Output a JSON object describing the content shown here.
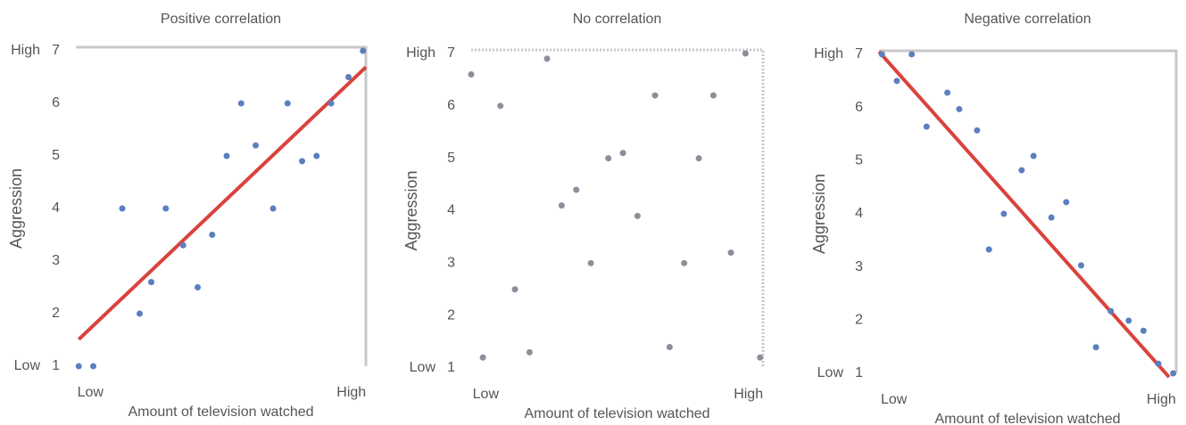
{
  "chart_data": [
    {
      "type": "scatter",
      "title": "Positive correlation",
      "xlabel": "Amount of television watched",
      "ylabel": "Aggression",
      "xlim": [
        0,
        10
      ],
      "ylim": [
        1,
        7
      ],
      "xticks": [
        {
          "value": 0.5,
          "label": "Low"
        },
        {
          "value": 9.5,
          "label": "High"
        }
      ],
      "yticks": [
        1,
        2,
        3,
        4,
        5,
        6,
        7
      ],
      "y_end_labels": [
        {
          "value": 1,
          "label": "Low"
        },
        {
          "value": 7,
          "label": "High"
        }
      ],
      "color": "#5b7fbf",
      "trendline_color": "#d9433c",
      "trendline": [
        [
          0.1,
          1.51
        ],
        [
          10,
          6.69
        ]
      ],
      "x": [
        0.1,
        0.6,
        1.6,
        2.2,
        2.6,
        3.1,
        3.7,
        4.2,
        4.7,
        5.2,
        5.7,
        6.2,
        6.8,
        7.3,
        7.8,
        8.3,
        8.8,
        9.4,
        9.9
      ],
      "values": [
        1.0,
        1.0,
        4.0,
        2.0,
        2.6,
        4.0,
        3.3,
        2.5,
        3.5,
        5.0,
        6.0,
        5.2,
        4.0,
        6.0,
        4.9,
        5.0,
        6.0,
        6.5,
        7.0
      ]
    },
    {
      "type": "scatter",
      "title": "No correlation",
      "xlabel": "Amount of television watched",
      "ylabel": "Aggression",
      "xlim": [
        0,
        10
      ],
      "ylim": [
        1,
        7
      ],
      "xticks": [
        {
          "value": 0.5,
          "label": "Low"
        },
        {
          "value": 9.5,
          "label": "High"
        }
      ],
      "yticks": [
        1,
        2,
        3,
        4,
        5,
        6,
        7
      ],
      "y_end_labels": [
        {
          "value": 1,
          "label": "Low"
        },
        {
          "value": 7,
          "label": "High"
        }
      ],
      "color": "#8a8f99",
      "x": [
        0,
        0.4,
        1.0,
        1.5,
        2.0,
        2.6,
        3.1,
        3.6,
        4.1,
        4.7,
        5.2,
        5.7,
        6.3,
        6.8,
        7.3,
        7.8,
        8.3,
        8.9,
        9.4,
        9.9
      ],
      "values": [
        6.6,
        1.2,
        6.0,
        2.5,
        1.3,
        6.9,
        4.1,
        4.4,
        3.0,
        5.0,
        5.1,
        3.9,
        6.2,
        1.4,
        3.0,
        5.0,
        6.2,
        3.2,
        7.0,
        1.2
      ]
    },
    {
      "type": "scatter",
      "title": "Negative correlation",
      "xlabel": "Amount of television watched",
      "ylabel": "Aggression",
      "xlim": [
        0,
        10
      ],
      "ylim": [
        1,
        7
      ],
      "xticks": [
        {
          "value": 0.5,
          "label": "Low"
        },
        {
          "value": 9.5,
          "label": "High"
        }
      ],
      "yticks": [
        1,
        2,
        3,
        4,
        5,
        6,
        7
      ],
      "y_end_labels": [
        {
          "value": 1,
          "label": "Low"
        },
        {
          "value": 7,
          "label": "High"
        }
      ],
      "color": "#5b7fbf",
      "trendline_color": "#d9433c",
      "trendline": [
        [
          0,
          7.05
        ],
        [
          9.76,
          0.93
        ]
      ],
      "x": [
        0.1,
        0.6,
        1.1,
        1.6,
        2.3,
        2.7,
        3.3,
        3.7,
        4.2,
        4.8,
        5.2,
        5.8,
        6.3,
        6.8,
        7.3,
        7.8,
        8.4,
        8.9,
        9.4,
        9.9
      ],
      "values": [
        7.0,
        6.5,
        7.0,
        5.64,
        6.28,
        5.97,
        5.57,
        3.33,
        4.0,
        4.82,
        5.09,
        3.93,
        4.22,
        3.03,
        1.49,
        2.17,
        1.99,
        1.8,
        1.18,
        1.0
      ]
    }
  ]
}
